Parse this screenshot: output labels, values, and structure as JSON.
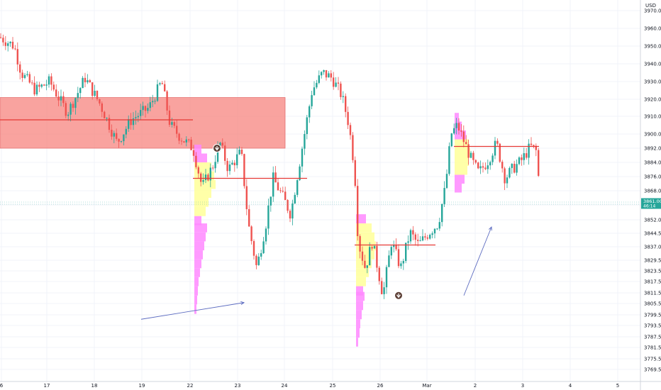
{
  "chart_data": {
    "type": "candlestick",
    "currency": "USD",
    "x_ticks": [
      "6",
      "17",
      "18",
      "19",
      "22",
      "23",
      "24",
      "25",
      "26",
      "Mar",
      "2",
      "3",
      "4",
      "5"
    ],
    "y_ticks": [
      "3970.00",
      "3960.00",
      "3950.00",
      "3940.00",
      "3930.00",
      "3920.00",
      "3910.00",
      "3900.00",
      "3892.00",
      "3884.00",
      "3876.00",
      "3868.00",
      "3860.00",
      "3852.00",
      "3844.50",
      "3837.00",
      "3829.50",
      "3823.50",
      "3817.50",
      "3811.50",
      "3805.50",
      "3799.50",
      "3793.50",
      "3787.50",
      "3781.50",
      "3775.50",
      "3769.50"
    ],
    "ylim": [
      3764,
      3976
    ],
    "price_label": {
      "price": "3861.00",
      "countdown": "46:14",
      "value": 3861
    },
    "zones": [
      {
        "x_start": 0,
        "x_end": 402,
        "y_top": 3921,
        "y_bottom": 3892,
        "color": "#f7807a"
      }
    ],
    "levels": [
      {
        "x_start": 0,
        "x_end": 272,
        "value": 3908
      },
      {
        "x_start": 272,
        "x_end": 433,
        "value": 3875
      },
      {
        "x_start": 500,
        "x_end": 614,
        "value": 3838
      },
      {
        "x_start": 640,
        "x_end": 760,
        "value": 3893
      }
    ],
    "volume_profiles": [
      {
        "x": 274,
        "rows": [
          [
            3894,
            10
          ],
          [
            3889,
            18
          ],
          [
            3884,
            24
          ],
          [
            3879,
            28
          ],
          [
            3874,
            30
          ],
          [
            3869,
            24
          ],
          [
            3864,
            20
          ],
          [
            3859,
            16
          ],
          [
            3854,
            10
          ]
        ],
        "va": [
          3886,
          3856
        ]
      },
      {
        "x": 274,
        "rows": [
          [
            3850,
            18
          ],
          [
            3845,
            16
          ],
          [
            3840,
            14
          ],
          [
            3835,
            12
          ],
          [
            3830,
            10
          ],
          [
            3825,
            8
          ],
          [
            3820,
            6
          ],
          [
            3815,
            5
          ],
          [
            3810,
            4
          ],
          [
            3805,
            3
          ]
        ],
        "va": [
          3900,
          3900
        ]
      },
      {
        "x": 502,
        "rows": [
          [
            3855,
            14
          ],
          [
            3850,
            22
          ],
          [
            3845,
            26
          ],
          [
            3840,
            28
          ],
          [
            3835,
            26
          ],
          [
            3830,
            22
          ],
          [
            3825,
            18
          ],
          [
            3820,
            14
          ],
          [
            3815,
            10
          ]
        ],
        "va": [
          3852,
          3818
        ]
      },
      {
        "x": 502,
        "rows": [
          [
            3812,
            12
          ],
          [
            3807,
            10
          ],
          [
            3802,
            8
          ],
          [
            3797,
            6
          ],
          [
            3792,
            5
          ],
          [
            3787,
            3
          ]
        ],
        "va": [
          3900,
          3900
        ]
      },
      {
        "x": 641,
        "rows": [
          [
            3912,
            6
          ],
          [
            3907,
            10
          ],
          [
            3902,
            16
          ],
          [
            3897,
            20
          ],
          [
            3892,
            22
          ],
          [
            3887,
            20
          ],
          [
            3882,
            18
          ],
          [
            3877,
            14
          ],
          [
            3872,
            10
          ]
        ],
        "va": [
          3900,
          3880
        ]
      }
    ],
    "trend_arrows": [
      {
        "x1": 199,
        "y1": 3797,
        "x2": 344,
        "y2": 3806
      },
      {
        "x1": 654,
        "y1": 3810,
        "x2": 693,
        "y2": 3848
      }
    ],
    "signals": [
      {
        "x": 306,
        "value": 3892,
        "direction": "down"
      },
      {
        "x": 562,
        "value": 3810,
        "direction": "down"
      }
    ],
    "colors": {
      "up": "#26a69a",
      "down": "#ef5350",
      "zone": "#f7807a",
      "level": "#e53935",
      "profile_va": "#ffff99",
      "profile_out": "#ff88ff",
      "arrow": "#5c6bc0",
      "price_label": "#26a69a"
    }
  }
}
